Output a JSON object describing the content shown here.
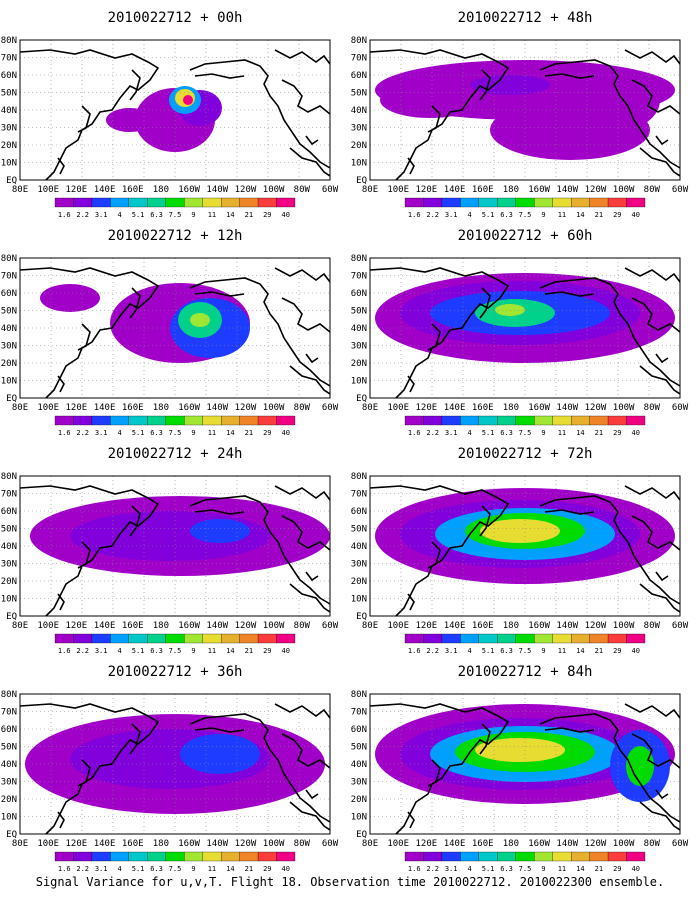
{
  "caption": "Signal Variance for u,v,T. Flight 18. Observation time 2010022712. 2010022300 ensemble.",
  "lat_labels": [
    "80N",
    "70N",
    "60N",
    "50N",
    "40N",
    "30N",
    "20N",
    "10N",
    "EQ"
  ],
  "lon_labels": [
    "80E",
    "100E",
    "120E",
    "140E",
    "160E",
    "180",
    "160W",
    "140W",
    "120W",
    "100W",
    "80W",
    "60W"
  ],
  "colorbar": {
    "levels": [
      "1.6",
      "2.2",
      "3.1",
      "4",
      "5.1",
      "6.3",
      "7.5",
      "9",
      "11",
      "14",
      "21",
      "29",
      "40"
    ],
    "colors": [
      "#a000c8",
      "#8200dc",
      "#1e3cff",
      "#00a0ff",
      "#00c8c8",
      "#00d28c",
      "#00dc00",
      "#a0e632",
      "#e6dc32",
      "#e6af2d",
      "#f08228",
      "#fa3c3c",
      "#f00082"
    ]
  },
  "panels": [
    {
      "title": "2010022712 + 00h"
    },
    {
      "title": "2010022712 + 48h"
    },
    {
      "title": "2010022712 + 12h"
    },
    {
      "title": "2010022712 + 60h"
    },
    {
      "title": "2010022712 + 24h"
    },
    {
      "title": "2010022712 + 72h"
    },
    {
      "title": "2010022712 + 36h"
    },
    {
      "title": "2010022712 + 84h"
    }
  ]
}
